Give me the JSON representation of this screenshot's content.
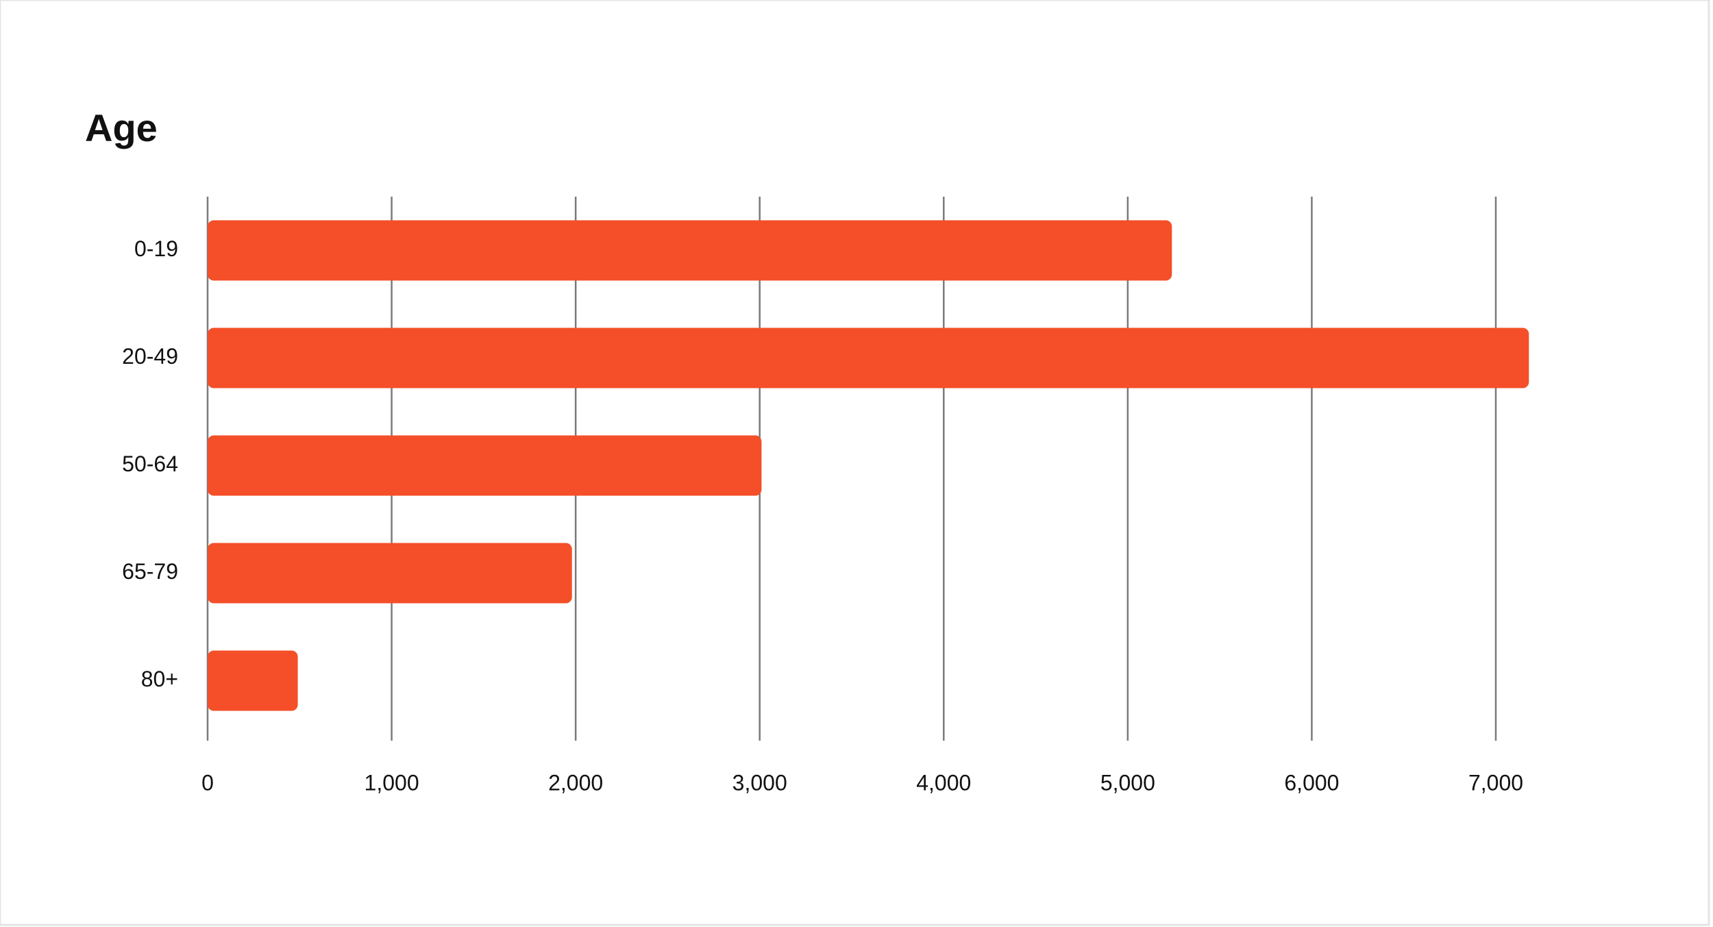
{
  "chart_data": {
    "type": "bar",
    "orientation": "horizontal",
    "title": "Age",
    "categories": [
      "0-19",
      "20-49",
      "50-64",
      "65-79",
      "80+"
    ],
    "values": [
      5240,
      7180,
      3010,
      1980,
      490
    ],
    "color": "#f44f28",
    "xlim": [
      0,
      7000
    ],
    "xticks": [
      0,
      {
        "value": 1000,
        "label": "1,000"
      },
      {
        "value": 2000,
        "label": "2,000"
      },
      {
        "value": 3000,
        "label": "3,000"
      },
      {
        "value": 4000,
        "label": "4,000"
      },
      {
        "value": 5000,
        "label": "5,000"
      },
      {
        "value": 6000,
        "label": "6,000"
      },
      {
        "value": 7000,
        "label": "7,000"
      }
    ],
    "grid": true
  }
}
